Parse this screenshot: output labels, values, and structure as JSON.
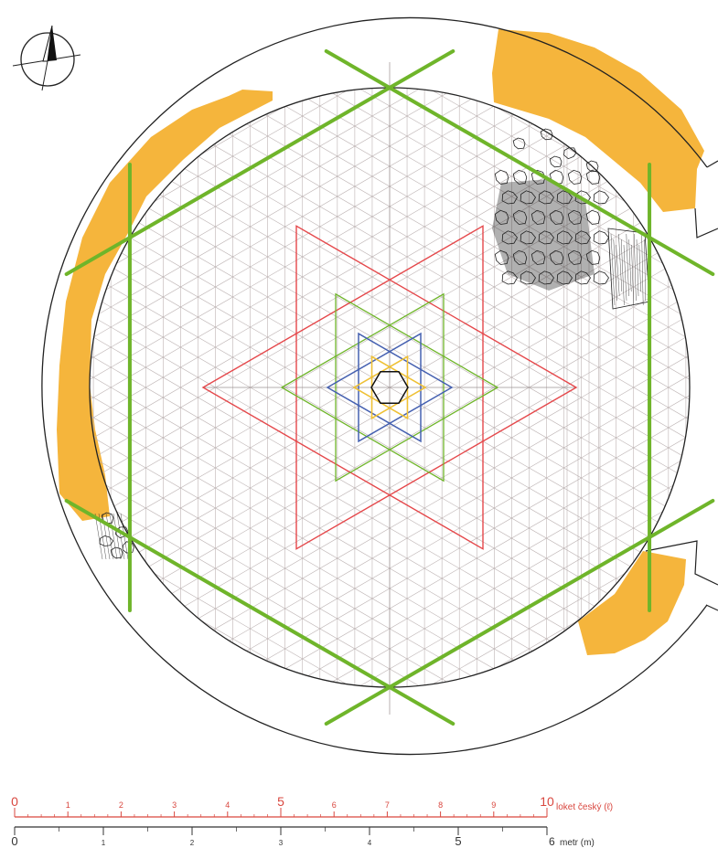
{
  "colors": {
    "ochre": "#f5b53c",
    "grid": "#bdb3b3",
    "green": "#6fb52a",
    "red": "#e5484b",
    "blue": "#4560b0",
    "yellow": "#f1c232",
    "ink": "#222222",
    "scale_red": "#d9473f"
  },
  "icons": {
    "north_arrow": "compass-north-arrow-icon"
  },
  "scale_top": {
    "unit_label": "loket český (ℓ)",
    "major_labels": [
      "0",
      "5",
      "10"
    ],
    "minor_labels": [
      "1",
      "2",
      "3",
      "4",
      "6",
      "7",
      "8",
      "9"
    ]
  },
  "scale_bottom": {
    "unit_label": "metr (m)",
    "major_labels": [
      "0",
      "5",
      "6"
    ],
    "minor_labels": [
      "1",
      "2",
      "3",
      "4"
    ]
  }
}
